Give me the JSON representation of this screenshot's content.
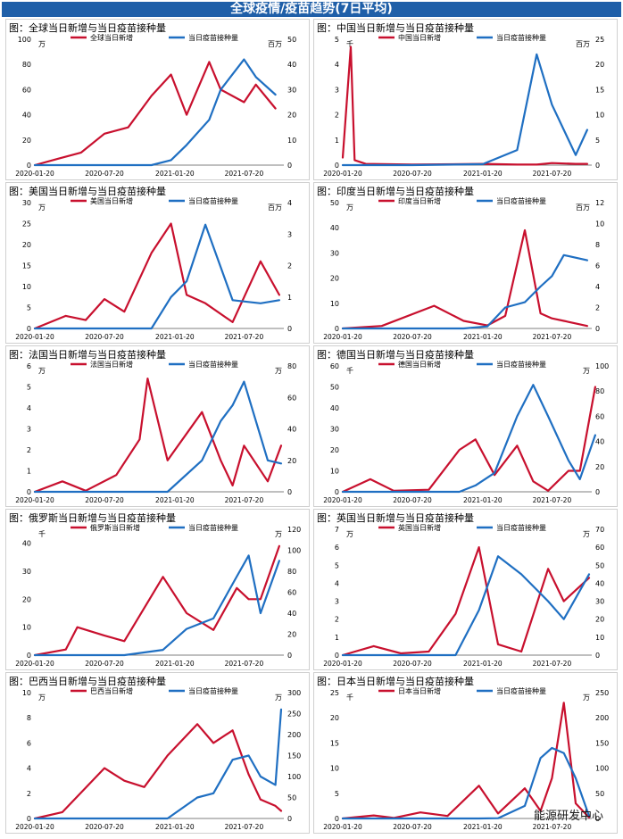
{
  "header": {
    "title": "全球疫情/疫苗趋势(7日平均)"
  },
  "watermark": "能源研发中心",
  "colors": {
    "cases": "#c8102e",
    "vaccine": "#1f6fc2"
  },
  "x_ticks": [
    "2020-01-20",
    "2020-07-20",
    "2021-01-20",
    "2021-07-20"
  ],
  "chart_data": [
    {
      "title": "图：全球当日新增与当日疫苗接种量",
      "type": "line",
      "unit_left": "万",
      "unit_right": "百万",
      "legend": [
        "全球当日新增",
        "当日疫苗接种量"
      ],
      "ylim_left": [
        0,
        100
      ],
      "yticks_left": [
        0,
        20,
        40,
        60,
        80,
        100
      ],
      "ylim_right": [
        0,
        50
      ],
      "yticks_right": [
        0,
        10,
        20,
        30,
        40,
        50
      ],
      "x": [
        "2020-01-20",
        "2020-03-20",
        "2020-05-20",
        "2020-07-20",
        "2020-09-20",
        "2020-11-20",
        "2021-01-10",
        "2021-02-20",
        "2021-04-20",
        "2021-05-20",
        "2021-07-20",
        "2021-08-20",
        "2021-10-10"
      ],
      "series": [
        {
          "name": "全球当日新增",
          "values": [
            0,
            5,
            10,
            25,
            30,
            55,
            72,
            40,
            82,
            60,
            50,
            64,
            45
          ]
        },
        {
          "name": "当日疫苗接种量",
          "values": [
            0,
            0,
            0,
            0,
            0,
            0,
            2,
            8,
            18,
            30,
            42,
            35,
            28
          ]
        }
      ]
    },
    {
      "title": "图：中国当日新增与当日疫苗接种量",
      "type": "line",
      "unit_left": "千",
      "unit_right": "百万",
      "legend": [
        "中国当日新增",
        "当日疫苗接种量"
      ],
      "ylim_left": [
        0,
        5
      ],
      "yticks_left": [
        0,
        1,
        2,
        3,
        4,
        5
      ],
      "ylim_right": [
        0,
        25
      ],
      "yticks_right": [
        0,
        5,
        10,
        15,
        20,
        25
      ],
      "x": [
        "2020-01-20",
        "2020-02-10",
        "2020-02-20",
        "2020-03-20",
        "2020-07-20",
        "2021-01-20",
        "2021-04-20",
        "2021-06-10",
        "2021-07-20",
        "2021-09-20",
        "2021-10-20"
      ],
      "series": [
        {
          "name": "中国当日新增",
          "values": [
            0.3,
            4.7,
            0.2,
            0.05,
            0.02,
            0.05,
            0.02,
            0.02,
            0.08,
            0.05,
            0.05
          ]
        },
        {
          "name": "当日疫苗接种量",
          "values": [
            0,
            0,
            0,
            0,
            0,
            0.2,
            3,
            22,
            12,
            2,
            7
          ]
        }
      ]
    },
    {
      "title": "图：美国当日新增与当日疫苗接种量",
      "type": "line",
      "unit_left": "万",
      "unit_right": "百万",
      "legend": [
        "美国当日新增",
        "当日疫苗接种量"
      ],
      "ylim_left": [
        0,
        30
      ],
      "yticks_left": [
        0,
        5,
        10,
        15,
        20,
        25,
        30
      ],
      "ylim_right": [
        0,
        4
      ],
      "yticks_right": [
        0,
        1,
        2,
        3,
        4
      ],
      "x": [
        "2020-01-20",
        "2020-04-10",
        "2020-06-01",
        "2020-07-20",
        "2020-09-10",
        "2020-11-20",
        "2021-01-10",
        "2021-02-20",
        "2021-04-10",
        "2021-06-20",
        "2021-09-01",
        "2021-10-20"
      ],
      "series": [
        {
          "name": "美国当日新增",
          "values": [
            0,
            3,
            2,
            7,
            4,
            18,
            25,
            8,
            6,
            1.5,
            16,
            8
          ]
        },
        {
          "name": "当日疫苗接种量",
          "values": [
            0,
            0,
            0,
            0,
            0,
            0,
            1,
            1.5,
            3.3,
            0.9,
            0.8,
            0.9
          ]
        }
      ]
    },
    {
      "title": "图：印度当日新增与当日疫苗接种量",
      "type": "line",
      "unit_left": "万",
      "unit_right": "百万",
      "legend": [
        "印度当日新增",
        "当日疫苗接种量"
      ],
      "ylim_left": [
        0,
        50
      ],
      "yticks_left": [
        0,
        10,
        20,
        30,
        40,
        50
      ],
      "ylim_right": [
        0,
        12
      ],
      "yticks_right": [
        0,
        2,
        4,
        6,
        8,
        10,
        12
      ],
      "x": [
        "2020-01-20",
        "2020-05-01",
        "2020-09-15",
        "2020-12-01",
        "2021-02-01",
        "2021-03-20",
        "2021-05-10",
        "2021-06-20",
        "2021-07-20",
        "2021-08-20",
        "2021-10-20"
      ],
      "series": [
        {
          "name": "印度当日新增",
          "values": [
            0,
            1,
            9,
            3,
            1.2,
            5,
            39,
            6,
            4,
            3,
            1
          ]
        },
        {
          "name": "当日疫苗接种量",
          "values": [
            0,
            0,
            0,
            0,
            0.2,
            2,
            2.5,
            4,
            5,
            7,
            6.5
          ]
        }
      ]
    },
    {
      "title": "图：法国当日新增与当日疫苗接种量",
      "type": "line",
      "unit_left": "万",
      "unit_right": "万",
      "legend": [
        "法国当日新增",
        "当日疫苗接种量"
      ],
      "ylim_left": [
        0,
        6
      ],
      "yticks_left": [
        0,
        1,
        2,
        3,
        4,
        5,
        6
      ],
      "ylim_right": [
        0,
        80
      ],
      "yticks_right": [
        0,
        20,
        40,
        60,
        80
      ],
      "x": [
        "2020-01-20",
        "2020-04-01",
        "2020-06-01",
        "2020-08-20",
        "2020-10-20",
        "2020-11-10",
        "2021-01-01",
        "2021-04-01",
        "2021-05-20",
        "2021-06-20",
        "2021-07-20",
        "2021-09-20",
        "2021-10-25"
      ],
      "series": [
        {
          "name": "法国当日新增",
          "values": [
            0,
            0.5,
            0.05,
            0.8,
            2.5,
            5.4,
            1.5,
            3.8,
            1.5,
            0.3,
            2.2,
            0.5,
            2.2
          ]
        },
        {
          "name": "当日疫苗接种量",
          "values": [
            0,
            0,
            0,
            0,
            0,
            0,
            0,
            20,
            45,
            55,
            70,
            20,
            18
          ]
        }
      ]
    },
    {
      "title": "图：德国当日新增与当日疫苗接种量",
      "type": "line",
      "unit_left": "千",
      "unit_right": "万",
      "legend": [
        "德国当日新增",
        "当日疫苗接种量"
      ],
      "ylim_left": [
        0,
        60
      ],
      "yticks_left": [
        0,
        10,
        20,
        30,
        40,
        50,
        60
      ],
      "ylim_right": [
        0,
        100
      ],
      "yticks_right": [
        0,
        20,
        40,
        60,
        80,
        100
      ],
      "x": [
        "2020-01-20",
        "2020-04-01",
        "2020-06-01",
        "2020-09-01",
        "2020-11-20",
        "2021-01-01",
        "2021-02-20",
        "2021-04-20",
        "2021-06-01",
        "2021-07-10",
        "2021-09-01",
        "2021-10-01",
        "2021-11-10"
      ],
      "series": [
        {
          "name": "德国当日新增",
          "values": [
            0,
            6,
            0.5,
            1,
            20,
            25,
            8,
            22,
            5,
            0.5,
            10,
            10,
            50
          ]
        },
        {
          "name": "当日疫苗接种量",
          "values": [
            0,
            0,
            0,
            0,
            0,
            5,
            15,
            60,
            85,
            60,
            25,
            10,
            45
          ]
        }
      ]
    },
    {
      "title": "图：俄罗斯当日新增与当日疫苗接种量",
      "type": "line",
      "unit_left": "千",
      "unit_right": "万",
      "legend": [
        "俄罗斯当日新增",
        "当日疫苗接种量"
      ],
      "ylim_left": [
        0,
        45
      ],
      "yticks_left": [
        0,
        10,
        20,
        30,
        40
      ],
      "ylim_right": [
        0,
        120
      ],
      "yticks_right": [
        0,
        20,
        40,
        60,
        80,
        100,
        120
      ],
      "x": [
        "2020-01-20",
        "2020-04-10",
        "2020-05-10",
        "2020-07-20",
        "2020-09-10",
        "2020-12-20",
        "2021-02-20",
        "2021-05-01",
        "2021-07-01",
        "2021-08-01",
        "2021-09-01",
        "2021-10-20"
      ],
      "series": [
        {
          "name": "俄罗斯当日新增",
          "values": [
            0,
            2,
            10,
            7,
            5,
            28,
            15,
            9,
            24,
            20,
            20,
            39
          ]
        },
        {
          "name": "当日疫苗接种量",
          "values": [
            0,
            0,
            0,
            0,
            0,
            5,
            25,
            35,
            75,
            95,
            40,
            90
          ]
        }
      ]
    },
    {
      "title": "图：英国当日新增与当日疫苗接种量",
      "type": "line",
      "unit_left": "万",
      "unit_right": "万",
      "legend": [
        "英国当日新增",
        "当日疫苗接种量"
      ],
      "ylim_left": [
        0,
        7
      ],
      "yticks_left": [
        0,
        1,
        2,
        3,
        4,
        5,
        6,
        7
      ],
      "ylim_right": [
        0,
        70
      ],
      "yticks_right": [
        0,
        10,
        20,
        30,
        40,
        50,
        60,
        70
      ],
      "x": [
        "2020-01-20",
        "2020-04-10",
        "2020-06-20",
        "2020-09-01",
        "2020-11-10",
        "2021-01-10",
        "2021-03-01",
        "2021-05-01",
        "2021-07-10",
        "2021-08-20",
        "2021-10-25"
      ],
      "series": [
        {
          "name": "英国当日新增",
          "values": [
            0,
            0.5,
            0.1,
            0.2,
            2.3,
            6,
            0.6,
            0.2,
            4.8,
            3,
            4.3
          ]
        },
        {
          "name": "当日疫苗接种量",
          "values": [
            0,
            0,
            0,
            0,
            0,
            25,
            55,
            45,
            30,
            20,
            45
          ]
        }
      ]
    },
    {
      "title": "图：巴西当日新增与当日疫苗接种量",
      "type": "line",
      "unit_left": "万",
      "unit_right": "万",
      "legend": [
        "巴西当日新增",
        "当日疫苗接种量"
      ],
      "ylim_left": [
        0,
        10
      ],
      "yticks_left": [
        0,
        2,
        4,
        6,
        8,
        10
      ],
      "ylim_right": [
        0,
        300
      ],
      "yticks_right": [
        0,
        50,
        100,
        150,
        200,
        250,
        300
      ],
      "x": [
        "2020-01-20",
        "2020-04-01",
        "2020-07-20",
        "2020-09-10",
        "2020-11-01",
        "2021-01-01",
        "2021-03-20",
        "2021-05-01",
        "2021-06-20",
        "2021-08-01",
        "2021-09-01",
        "2021-10-10",
        "2021-10-25"
      ],
      "series": [
        {
          "name": "巴西当日新增",
          "values": [
            0,
            0.5,
            4,
            3,
            2.5,
            5,
            7.5,
            6,
            7,
            3.5,
            1.5,
            1,
            0.6
          ]
        },
        {
          "name": "当日疫苗接种量",
          "values": [
            0,
            0,
            0,
            0,
            0,
            0,
            50,
            60,
            140,
            150,
            100,
            80,
            260
          ]
        }
      ]
    },
    {
      "title": "图：日本当日新增与当日疫苗接种量",
      "type": "line",
      "unit_left": "千",
      "unit_right": "万",
      "legend": [
        "日本当日新增",
        "当日疫苗接种量"
      ],
      "ylim_left": [
        0,
        25
      ],
      "yticks_left": [
        0,
        5,
        10,
        15,
        20,
        25
      ],
      "ylim_right": [
        0,
        250
      ],
      "yticks_right": [
        0,
        50,
        100,
        150,
        200,
        250
      ],
      "x": [
        "2020-01-20",
        "2020-04-10",
        "2020-06-01",
        "2020-08-10",
        "2020-10-20",
        "2021-01-10",
        "2021-03-01",
        "2021-05-10",
        "2021-06-20",
        "2021-07-20",
        "2021-08-20",
        "2021-09-20",
        "2021-10-25"
      ],
      "series": [
        {
          "name": "日本当日新增",
          "values": [
            0,
            0.6,
            0.1,
            1.2,
            0.5,
            6.5,
            1,
            6,
            1.5,
            8,
            23,
            3,
            0.2
          ]
        },
        {
          "name": "当日疫苗接种量",
          "values": [
            0,
            0,
            0,
            0,
            0,
            0,
            0.5,
            25,
            120,
            140,
            130,
            80,
            5
          ]
        }
      ]
    }
  ]
}
